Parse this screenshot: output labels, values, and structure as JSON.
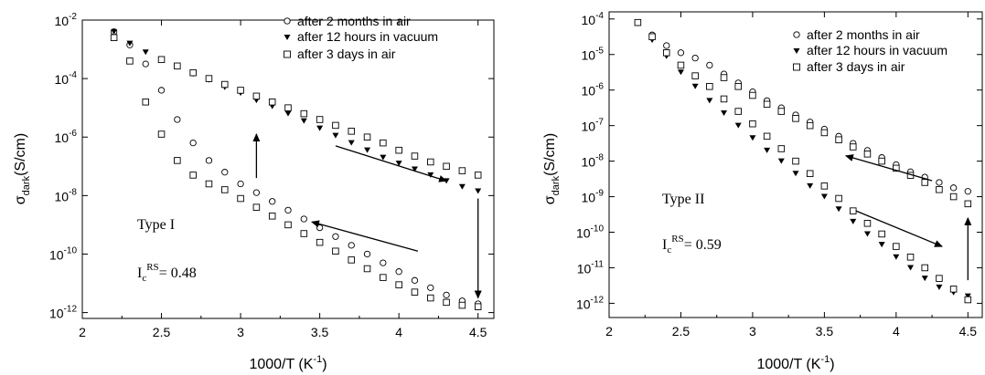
{
  "chart_data": [
    {
      "type": "scatter",
      "xlabel": "1000/T (K",
      "xlabel_exp": "-1",
      "xlabel_end": ")",
      "ylabel_main": "σ",
      "ylabel_sub": "dark",
      "ylabel_unit": "(S/cm)",
      "xlim": [
        2.0,
        4.6
      ],
      "ylim_log10": [
        -12.2,
        -2
      ],
      "y_scale": "log",
      "x_ticks": [
        "2",
        "2.5",
        "3",
        "3.5",
        "4",
        "4.5"
      ],
      "y_ticks": [
        {
          "base": "10",
          "exp": "-2"
        },
        {
          "base": "10",
          "exp": "-4"
        },
        {
          "base": "10",
          "exp": "-6"
        },
        {
          "base": "10",
          "exp": "-8"
        },
        {
          "base": "10",
          "exp": "-10"
        },
        {
          "base": "10",
          "exp": "-12"
        }
      ],
      "legend_position": "top-right",
      "annotation_type": "Type I",
      "annotation_ic": {
        "main": "I",
        "sub": "c",
        "sup": "RS",
        "value": "= 0.48"
      },
      "series": [
        {
          "name": "after 2 months in air",
          "marker": "circle-open",
          "x": [
            2.2,
            2.3,
            2.4,
            2.5,
            2.6,
            2.7,
            2.8,
            2.9,
            3.0,
            3.1,
            3.2,
            3.3,
            3.4,
            3.5,
            3.6,
            3.7,
            3.8,
            3.9,
            4.0,
            4.1,
            4.2,
            4.3,
            4.4,
            4.5
          ],
          "log10_y": [
            -2.4,
            -2.85,
            -3.5,
            -4.4,
            -5.4,
            -6.2,
            -6.8,
            -7.2,
            -7.6,
            -7.9,
            -8.2,
            -8.5,
            -8.8,
            -9.1,
            -9.4,
            -9.7,
            -10.0,
            -10.3,
            -10.6,
            -10.9,
            -11.15,
            -11.4,
            -11.6,
            -11.7
          ]
        },
        {
          "name": "after 12 hours in vacuum",
          "marker": "triangle-down-filled",
          "x": [
            2.2,
            2.3,
            2.4,
            2.5,
            2.6,
            2.7,
            2.8,
            2.9,
            3.0,
            3.1,
            3.2,
            3.3,
            3.4,
            3.5,
            3.6,
            3.7,
            3.8,
            3.9,
            4.0,
            4.1,
            4.2,
            4.3,
            4.4,
            4.5
          ],
          "log10_y": [
            -2.4,
            -2.8,
            -3.1,
            -3.38,
            -3.6,
            -3.85,
            -4.05,
            -4.3,
            -4.5,
            -4.75,
            -4.95,
            -5.2,
            -5.45,
            -5.7,
            -5.95,
            -6.2,
            -6.45,
            -6.7,
            -6.9,
            -7.1,
            -7.3,
            -7.5,
            -7.7,
            -7.85
          ]
        },
        {
          "name": "after 3 days in air",
          "marker": "square-open",
          "x": [
            2.2,
            2.3,
            2.4,
            2.5,
            2.6,
            2.7,
            2.8,
            2.9,
            3.0,
            3.1,
            3.2,
            3.3,
            3.4,
            3.5,
            3.6,
            3.7,
            3.8,
            3.9,
            4.0,
            4.1,
            4.2,
            4.3,
            4.4,
            4.5
          ],
          "log10_y": [
            -2.6,
            -3.4,
            -4.8,
            -5.9,
            -6.8,
            -7.3,
            -7.6,
            -7.8,
            -8.1,
            -8.4,
            -8.7,
            -9.0,
            -9.3,
            -9.6,
            -9.9,
            -10.2,
            -10.5,
            -10.8,
            -11.05,
            -11.3,
            -11.5,
            -11.65,
            -11.75,
            -11.8
          ]
        },
        {
          "name": "",
          "marker": "square-open",
          "x": [
            2.5,
            2.6,
            2.7,
            2.8,
            2.9,
            3.0,
            3.1,
            3.2,
            3.3,
            3.4,
            3.5,
            3.6,
            3.7,
            3.8,
            3.9,
            4.0,
            4.1,
            4.2,
            4.3,
            4.4,
            4.5
          ],
          "log10_y": [
            -3.35,
            -3.57,
            -3.8,
            -4.0,
            -4.2,
            -4.4,
            -4.6,
            -4.8,
            -5.0,
            -5.2,
            -5.4,
            -5.6,
            -5.8,
            -6.0,
            -6.2,
            -6.45,
            -6.65,
            -6.85,
            -7.0,
            -7.15,
            -7.3
          ]
        }
      ],
      "arrows": [
        {
          "x1": 3.1,
          "y1": -7.4,
          "x2": 3.1,
          "y2": -5.9
        },
        {
          "x1": 3.6,
          "y1": -6.3,
          "x2": 4.3,
          "y2": -7.5
        },
        {
          "x1": 4.5,
          "y1": -8.1,
          "x2": 4.5,
          "y2": -11.5
        },
        {
          "x1": 4.12,
          "y1": -9.9,
          "x2": 3.45,
          "y2": -8.9
        }
      ]
    },
    {
      "type": "scatter",
      "xlabel": "1000/T (K",
      "xlabel_exp": "-1",
      "xlabel_end": ")",
      "ylabel_main": "σ",
      "ylabel_sub": "dark",
      "ylabel_unit": "(S/cm)",
      "xlim": [
        2.0,
        4.6
      ],
      "ylim_log10": [
        -12.4,
        -3.8
      ],
      "y_scale": "log",
      "x_ticks": [
        "2",
        "2.5",
        "3",
        "3.5",
        "4",
        "4.5"
      ],
      "y_ticks": [
        {
          "base": "10",
          "exp": "-4"
        },
        {
          "base": "10",
          "exp": "-5"
        },
        {
          "base": "10",
          "exp": "-6"
        },
        {
          "base": "10",
          "exp": "-7"
        },
        {
          "base": "10",
          "exp": "-8"
        },
        {
          "base": "10",
          "exp": "-9"
        },
        {
          "base": "10",
          "exp": "-10"
        },
        {
          "base": "10",
          "exp": "-11"
        },
        {
          "base": "10",
          "exp": "-12"
        }
      ],
      "legend_position": "top-right",
      "annotation_type": "Type II",
      "annotation_ic": {
        "main": "I",
        "sub": "c",
        "sup": "RS",
        "value": "= 0.59"
      },
      "series": [
        {
          "name": "after 2 months in air",
          "marker": "circle-open",
          "x": [
            2.2,
            2.3,
            2.4,
            2.5,
            2.6,
            2.7,
            2.8,
            2.9,
            3.0,
            3.1,
            3.2,
            3.3,
            3.4,
            3.5,
            3.6,
            3.7,
            3.8,
            3.9,
            4.0,
            4.1,
            4.2,
            4.3,
            4.4,
            4.5
          ],
          "log10_y": [
            -4.1,
            -4.45,
            -4.75,
            -4.95,
            -5.1,
            -5.3,
            -5.55,
            -5.8,
            -6.05,
            -6.3,
            -6.5,
            -6.7,
            -6.9,
            -7.1,
            -7.3,
            -7.5,
            -7.7,
            -7.9,
            -8.1,
            -8.3,
            -8.45,
            -8.6,
            -8.75,
            -8.85
          ]
        },
        {
          "name": "after 12 hours in vacuum",
          "marker": "triangle-down-filled",
          "x": [
            2.2,
            2.3,
            2.4,
            2.5,
            2.6,
            2.7,
            2.8,
            2.9,
            3.0,
            3.1,
            3.2,
            3.3,
            3.4,
            3.5,
            3.6,
            3.7,
            3.8,
            3.9,
            4.0,
            4.1,
            4.2,
            4.3,
            4.4,
            4.5
          ],
          "log10_y": [
            -4.1,
            -4.6,
            -5.05,
            -5.5,
            -5.9,
            -6.3,
            -6.65,
            -7.0,
            -7.35,
            -7.7,
            -8.0,
            -8.35,
            -8.7,
            -9.0,
            -9.35,
            -9.7,
            -10.05,
            -10.35,
            -10.7,
            -11.0,
            -11.3,
            -11.55,
            -11.7,
            -11.8
          ]
        },
        {
          "name": "after 3 days in air",
          "marker": "square-open",
          "x": [
            2.2,
            2.3,
            2.4,
            2.5,
            2.6,
            2.7,
            2.8,
            2.9,
            3.0,
            3.1,
            3.2,
            3.3,
            3.4,
            3.5,
            3.6,
            3.7,
            3.8,
            3.9,
            4.0,
            4.1,
            4.2,
            4.3,
            4.4,
            4.5
          ],
          "log10_y": [
            -4.1,
            -4.5,
            -4.95,
            -5.3,
            -5.6,
            -5.9,
            -6.25,
            -6.6,
            -6.95,
            -7.3,
            -7.65,
            -8.0,
            -8.35,
            -8.7,
            -9.05,
            -9.4,
            -9.75,
            -10.05,
            -10.4,
            -10.7,
            -11.0,
            -11.3,
            -11.6,
            -11.9
          ]
        },
        {
          "name": "",
          "marker": "square-open",
          "x": [
            2.8,
            2.9,
            3.0,
            3.1,
            3.2,
            3.3,
            3.4,
            3.5,
            3.6,
            3.7,
            3.8,
            3.9,
            4.0,
            4.1,
            4.2,
            4.3,
            4.4,
            4.5
          ],
          "log10_y": [
            -5.65,
            -5.9,
            -6.15,
            -6.4,
            -6.6,
            -6.8,
            -7.0,
            -7.2,
            -7.4,
            -7.6,
            -7.8,
            -8.0,
            -8.2,
            -8.4,
            -8.6,
            -8.8,
            -9.0,
            -9.2
          ]
        }
      ],
      "arrows": [
        {
          "x1": 3.72,
          "y1": -9.4,
          "x2": 4.32,
          "y2": -10.4
        },
        {
          "x1": 4.25,
          "y1": -8.55,
          "x2": 3.65,
          "y2": -7.85
        },
        {
          "x1": 4.5,
          "y1": -11.35,
          "x2": 4.5,
          "y2": -9.6
        }
      ]
    }
  ]
}
